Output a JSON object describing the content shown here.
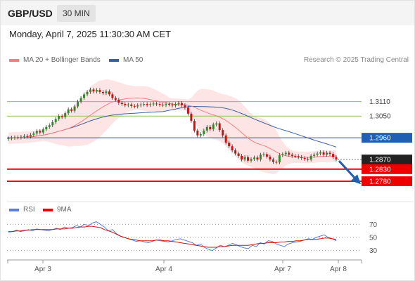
{
  "header": {
    "symbol": "GBP/USD",
    "timeframe": "30 MIN"
  },
  "datetime": "Monday, April 7, 2025 11:30:30 AM CET",
  "legend": {
    "ma20": "MA 20 + Bollinger Bands",
    "ma50": "MA 50",
    "credit": "Research © 2025 Trading Central"
  },
  "rsi_legend": {
    "rsi": "RSI",
    "ma": "9MA"
  },
  "colors": {
    "up": "#2e8b2e",
    "down": "#d01010",
    "ma20": "#f08080",
    "ma50": "#3a5fa0",
    "band": "#fde0e0",
    "support": "#ee0000",
    "resistance_green": "#8bc34a",
    "pivot": "#1f5fb4",
    "last": "#222222",
    "rsi": "#5b7fd6"
  },
  "chart_data": [
    {
      "type": "candlestick",
      "title": "GBP/USD 30 MIN",
      "x_ticks": [
        "Apr 3",
        "Apr 4",
        "Apr 7",
        "Apr 8"
      ],
      "ylim": [
        1.271,
        1.324
      ],
      "closes": [
        1.2958,
        1.296,
        1.2962,
        1.2961,
        1.2964,
        1.2967,
        1.2965,
        1.2972,
        1.2978,
        1.2988,
        1.2982,
        1.2995,
        1.3005,
        1.3012,
        1.3025,
        1.3038,
        1.305,
        1.3046,
        1.3062,
        1.3078,
        1.3072,
        1.309,
        1.311,
        1.3125,
        1.314,
        1.315,
        1.316,
        1.3152,
        1.3158,
        1.315,
        1.3145,
        1.3152,
        1.314,
        1.3125,
        1.3118,
        1.3105,
        1.31,
        1.3095,
        1.3098,
        1.3092,
        1.309,
        1.3095,
        1.3098,
        1.31,
        1.3096,
        1.3099,
        1.3102,
        1.31,
        1.3097,
        1.3096,
        1.31,
        1.3098,
        1.3094,
        1.31,
        1.3104,
        1.3095,
        1.3085,
        1.306,
        1.303,
        1.299,
        1.297,
        1.2975,
        1.299,
        1.3005,
        1.2995,
        1.3015,
        1.302,
        1.2992,
        1.297,
        1.294,
        1.2925,
        1.2908,
        1.2895,
        1.2885,
        1.287,
        1.288,
        1.2865,
        1.2872,
        1.2878,
        1.287,
        1.289,
        1.2892,
        1.2882,
        1.287,
        1.286,
        1.2858,
        1.2888,
        1.2892,
        1.2898,
        1.289,
        1.2885,
        1.2884,
        1.288,
        1.2876,
        1.2872,
        1.287,
        1.2885,
        1.289,
        1.2895,
        1.29,
        1.289,
        1.2898,
        1.2893,
        1.288,
        1.287
      ],
      "levels": [
        {
          "price": "1.3110",
          "role": "resistance",
          "color": "green"
        },
        {
          "price": "1.3050",
          "role": "resistance",
          "color": "green"
        },
        {
          "price": "1.2960",
          "role": "pivot",
          "color": "blue"
        },
        {
          "price": "1.2870",
          "role": "last",
          "color": "black"
        },
        {
          "price": "1.2830",
          "role": "support",
          "color": "red"
        },
        {
          "price": "1.2780",
          "role": "support",
          "color": "red"
        }
      ],
      "forecast": "down"
    },
    {
      "type": "line",
      "title": "RSI",
      "y_ticks": [
        "70",
        "50",
        "30"
      ],
      "ylim": [
        20,
        80
      ],
      "series": [
        {
          "name": "RSI",
          "values": [
            58,
            59,
            61,
            59,
            60,
            62,
            60,
            63,
            62,
            61,
            60,
            62,
            64,
            62,
            66,
            64,
            65,
            68,
            66,
            70,
            68,
            72,
            74,
            70,
            66,
            60,
            62,
            56,
            52,
            50,
            48,
            46,
            44,
            45,
            43,
            42,
            44,
            46,
            45,
            44,
            43,
            45,
            47,
            48,
            46,
            44,
            42,
            38,
            40,
            35,
            32,
            30,
            34,
            38,
            36,
            38,
            41,
            39,
            36,
            34,
            33,
            38,
            36,
            42,
            40,
            45,
            44,
            40,
            38,
            36,
            40,
            42,
            43,
            44,
            46,
            48,
            47,
            50,
            52,
            54,
            50,
            48,
            45
          ]
        },
        {
          "name": "9MA",
          "values": [
            59,
            59,
            60,
            60,
            61,
            61,
            62,
            62,
            62,
            62,
            62,
            62,
            63,
            63,
            63,
            64,
            64,
            65,
            66,
            66,
            67,
            67,
            66,
            65,
            62,
            60,
            58,
            55,
            52,
            50,
            48,
            47,
            46,
            45,
            45,
            45,
            45,
            46,
            46,
            45,
            45,
            44,
            43,
            42,
            41,
            40,
            39,
            38,
            37,
            36,
            35,
            35,
            35,
            36,
            36,
            37,
            38,
            38,
            38,
            38,
            38,
            39,
            40,
            41,
            41,
            42,
            42,
            42,
            43,
            43,
            44,
            44,
            45,
            45,
            46,
            47,
            47,
            47,
            48,
            49,
            49,
            48,
            47
          ]
        }
      ]
    }
  ]
}
